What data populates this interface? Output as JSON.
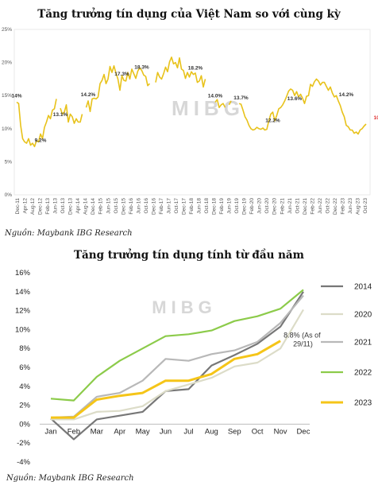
{
  "chart_data": [
    {
      "type": "line",
      "title": "Tăng trưởng tín dụng của Việt Nam so với cùng kỳ",
      "source": "Nguồn: Maybank IBG Research",
      "watermark": "MIBG",
      "ylim": [
        0,
        25
      ],
      "yticks": [
        "0%",
        "5%",
        "10%",
        "15%",
        "20%",
        "25%"
      ],
      "x_labels": [
        "Dec-11",
        "Apr-12",
        "Aug-12",
        "Dec-12",
        "Apr-13",
        "Aug-13",
        "Dec-13",
        "Apr-14",
        "Aug-14",
        "Dec-14",
        "Apr-15",
        "Aug-15",
        "Dec-15",
        "Apr-16",
        "Aug-16",
        "Dec-16",
        "Apr-17",
        "Aug-17",
        "Dec-17",
        "Apr-18",
        "Aug-18",
        "Dec-18",
        "Apr-19",
        "Aug-19",
        "Dec-19",
        "Apr-20",
        "Aug-20",
        "Dec-20",
        "Apr-21",
        "Aug-21",
        "Dec-21",
        "Apr-22",
        "Aug-22",
        "Dec-22",
        "Apr-23",
        "Aug-23",
        "Oct-23"
      ],
      "x_labels_printed": [
        "Dec-11",
        "Apr-12",
        "Aug-12",
        "Dec-12",
        "Feb-13",
        "Jun-13",
        "Oct-13",
        "Dec-13",
        "Apr-14",
        "Aug-14",
        "Dec-14",
        "Feb-15",
        "Jun-15",
        "Oct-15",
        "Dec-15",
        "Feb-16",
        "Jun-16",
        "Oct-16",
        "Dec-16",
        "Feb-17",
        "Jun-17",
        "Oct-17",
        "Dec-17",
        "Feb-18",
        "Jun-18",
        "Oct-18",
        "Dec-18",
        "Feb-19",
        "Jun-19",
        "Oct-19",
        "Dec-19",
        "Feb-20",
        "Jun-20",
        "Oct-20",
        "Dec-20",
        "Feb-21",
        "Jun-21",
        "Oct-21",
        "Dec-21",
        "Feb-22",
        "Jun-22",
        "Oct-22",
        "Dec-22",
        "Feb-23",
        "Jun-23",
        "Aug-23",
        "Oct-23"
      ],
      "series": [
        {
          "color": "#e8c21a",
          "values": [
            14.0,
            13.8,
            10.5,
            8.5,
            8.0,
            7.8,
            8.5,
            7.5,
            7.8,
            7.3,
            8.2,
            8.0,
            9.2,
            8.5,
            10.2,
            11.0,
            12.0,
            11.5,
            12.8,
            13.0,
            14.5,
            null,
            13.1,
            12.2,
            12.5,
            13.6,
            11.0,
            12.2,
            11.8,
            10.8,
            11.5,
            11.0,
            11.0,
            12.2,
            null,
            13.2,
            14.2,
            12.6,
            14.5,
            14.6,
            14.5,
            14.8,
            16.8,
            17.3,
            18.2,
            16.8,
            17.5,
            19.4,
            18.5,
            19.5,
            18.4,
            17.5,
            15.8,
            18.0,
            17.3,
            17.2,
            18.5,
            17.5,
            19.0,
            18.3,
            17.6,
            18.7,
            19.2,
            18.8,
            18.1,
            17.9,
            16.5,
            16.8,
            null,
            null,
            17.0,
            18.5,
            17.8,
            17.5,
            18.3,
            19.3,
            18.6,
            20.1,
            20.8,
            19.8,
            20.0,
            19.2,
            20.7,
            19.0,
            18.8,
            17.6,
            18.5,
            17.8,
            18.6,
            18.2,
            18.4,
            17.0,
            17.2,
            18.0,
            16.3,
            17.5,
            null,
            null,
            14.8,
            null,
            14.0,
            14.4,
            13.2,
            13.6,
            13.8,
            13.2,
            null,
            13.6,
            14.2,
            null,
            null,
            null,
            13.8,
            13.7,
            12.8,
            11.8,
            11.3,
            10.5,
            10.0,
            9.8,
            9.9,
            10.2,
            10.0,
            9.9,
            10.1,
            9.8,
            9.9,
            11.2,
            12.2,
            12.5,
            11.2,
            12.0,
            13.0,
            13.2,
            13.6,
            14.2,
            14.9,
            15.7,
            16.0,
            15.8,
            15.0,
            15.6,
            14.8,
            15.2,
            14.6,
            13.8,
            14.9,
            15.0,
            16.7,
            16.4,
            17.1,
            17.5,
            17.2,
            16.6,
            17.0,
            17.0,
            16.4,
            15.8,
            16.3,
            15.4,
            14.8,
            15.0,
            14.2,
            13.5,
            12.5,
            11.8,
            10.5,
            10.3,
            9.8,
            9.8,
            9.3,
            9.5,
            9.2,
            9.8,
            10.0,
            10.4,
            10.7
          ]
        }
      ],
      "annotations": [
        {
          "label": "14%",
          "x": 0,
          "y": 14.0
        },
        {
          "label": "9.2%",
          "x": 12,
          "y": 9.2
        },
        {
          "label": "13.1%",
          "x": 22,
          "y": 13.1
        },
        {
          "label": "14.2%",
          "x": 36,
          "y": 14.2
        },
        {
          "label": "17.3%",
          "x": 53,
          "y": 17.3
        },
        {
          "label": "18.3%",
          "x": 63,
          "y": 18.3
        },
        {
          "label": "18.2%",
          "x": 90,
          "y": 18.2
        },
        {
          "label": "14.0%",
          "x": 100,
          "y": 14.0
        },
        {
          "label": "13.7%",
          "x": 113,
          "y": 13.7
        },
        {
          "label": "12.2%",
          "x": 129,
          "y": 12.2
        },
        {
          "label": "13.6%",
          "x": 140,
          "y": 13.6
        },
        {
          "label": "14.2%",
          "x": 166,
          "y": 14.2
        },
        {
          "label": "10.7%",
          "x": 179,
          "y": 10.7
        }
      ]
    },
    {
      "type": "line",
      "title": "Tăng trưởng tín dụng tính từ đầu năm",
      "source": "Nguồn: Maybank IBG Research",
      "watermark": "MIBG",
      "categories": [
        "Jan",
        "Feb",
        "Mar",
        "Apr",
        "May",
        "Jun",
        "Jul",
        "Aug",
        "Sep",
        "Oct",
        "Nov",
        "Dec"
      ],
      "ylim": [
        -4,
        16
      ],
      "yticks": [
        "-4%",
        "-2%",
        "0%",
        "2%",
        "4%",
        "6%",
        "8%",
        "10%",
        "12%",
        "14%",
        "16%"
      ],
      "series": [
        {
          "name": "2014",
          "color": "#777777",
          "values": [
            0.6,
            -1.6,
            0.5,
            0.9,
            1.3,
            3.5,
            3.7,
            6.2,
            7.3,
            8.5,
            10.3,
            14.0
          ]
        },
        {
          "name": "2020",
          "color": "#dcdcc8",
          "values": [
            0.5,
            0.5,
            1.3,
            1.4,
            1.9,
            3.5,
            4.2,
            4.9,
            6.1,
            6.5,
            8.0,
            12.1
          ]
        },
        {
          "name": "2021",
          "color": "#b8b8b8",
          "values": [
            0.7,
            0.8,
            2.9,
            3.3,
            4.6,
            6.9,
            6.7,
            7.4,
            7.8,
            8.7,
            10.7,
            13.6
          ]
        },
        {
          "name": "2022",
          "color": "#8ccb4a",
          "values": [
            2.7,
            2.5,
            5.0,
            6.7,
            8.0,
            9.3,
            9.5,
            9.9,
            10.9,
            11.4,
            12.2,
            14.2
          ]
        },
        {
          "name": "2023",
          "color": "#f5c518",
          "values": [
            0.7,
            0.7,
            2.6,
            3.0,
            3.3,
            4.6,
            4.6,
            5.3,
            6.9,
            7.4,
            8.8,
            null
          ]
        }
      ],
      "annotations": [
        {
          "label": "8.8% (As of 29/11)",
          "line1": "8.8% (As of",
          "line2": "29/11)",
          "x": 10,
          "y": 8.8
        }
      ]
    }
  ]
}
